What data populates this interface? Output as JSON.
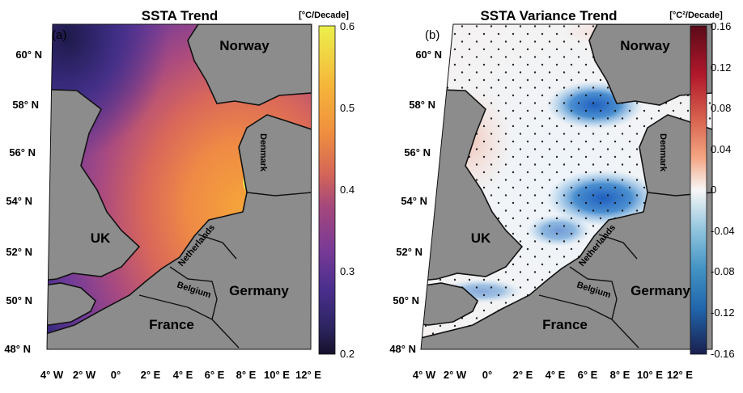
{
  "panels": [
    {
      "id": "a",
      "panel_label": "(a)",
      "title": "SSTA Trend",
      "unit": "[°C/Decade]",
      "colorbar_ticks": [
        "0.6",
        "0.5",
        "0.4",
        "0.3",
        "0.2"
      ],
      "colorbar_range": [
        0.2,
        0.6
      ],
      "colors": [
        "#ecf04c",
        "#f5b63a",
        "#f0903e",
        "#d46658",
        "#a5487c",
        "#7a3a96",
        "#4b2f8e",
        "#2c2460",
        "#16112a"
      ]
    },
    {
      "id": "b",
      "panel_label": "(b)",
      "title": "SSTA Variance Trend",
      "unit": "[°C²/Decade]",
      "colorbar_ticks": [
        "0.16",
        "0.12",
        "0.08",
        "0.04",
        "0",
        "-0.04",
        "-0.08",
        "-0.12",
        "-0.16"
      ],
      "colorbar_range": [
        -0.16,
        0.16
      ],
      "colors": [
        "#5a0a18",
        "#b2182b",
        "#d6604d",
        "#f4a582",
        "#f7f7f7",
        "#92c5de",
        "#4393c3",
        "#2166ac",
        "#1a1f4e"
      ]
    }
  ],
  "axes": {
    "lat_labels": [
      "60° N",
      "58° N",
      "56° N",
      "54° N",
      "52° N",
      "50° N",
      "48° N"
    ],
    "lon_labels": [
      "4° W",
      "2° W",
      "0°",
      "2° E",
      "4° E",
      "6° E",
      "8° E",
      "10° E",
      "12° E"
    ]
  },
  "countries": {
    "norway": "Norway",
    "uk": "UK",
    "denmark": "Denmark",
    "netherlands": "Netherlands",
    "belgium": "Belgium",
    "germany": "Germany",
    "france": "France"
  }
}
